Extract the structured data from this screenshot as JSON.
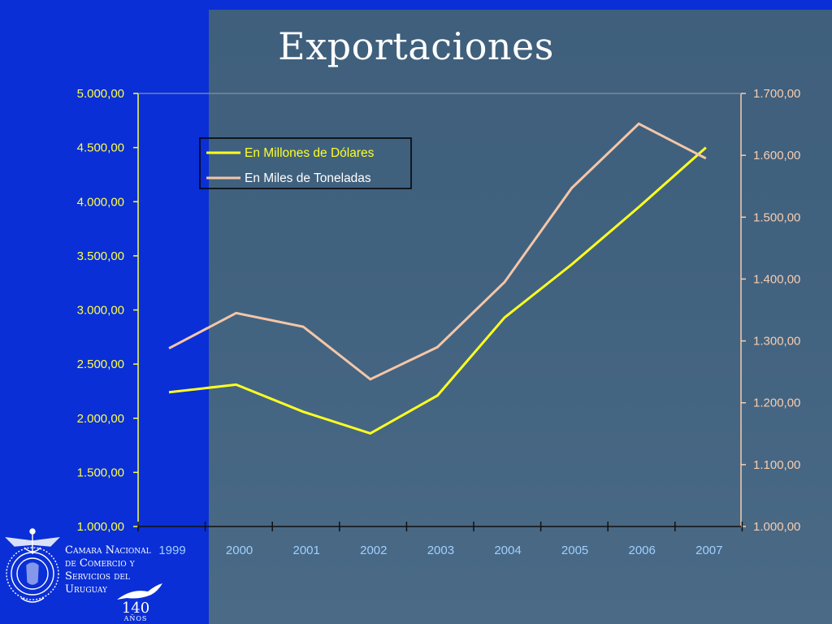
{
  "slide": {
    "title": "Exportaciones",
    "organization": [
      "Camara Nacional",
      "de Comercio y",
      "Servicios del",
      "Uruguay"
    ],
    "anniversary_number": "140",
    "anniversary_label": "AÑOS"
  },
  "colors": {
    "background_left": "#0a2fd6",
    "panel": "#41627f",
    "series_dollars": "#ffff22",
    "series_tons": "#f4c6a8",
    "left_axis_text": "#ffff44",
    "right_axis_text": "#f7cdb0",
    "x_axis_text": "#9fd0ff"
  },
  "chart_data": {
    "type": "line",
    "title": "Exportaciones",
    "categories": [
      "1999",
      "2000",
      "2001",
      "2002",
      "2003",
      "2004",
      "2005",
      "2006",
      "2007"
    ],
    "series": [
      {
        "name": "En Millones de Dólares",
        "axis": "left",
        "values": [
          2240,
          2310,
          2060,
          1860,
          2210,
          2930,
          3420,
          3950,
          4500
        ]
      },
      {
        "name": "En Miles de Toneladas",
        "axis": "right",
        "values": [
          1288,
          1345,
          1323,
          1238,
          1290,
          1395,
          1547,
          1651,
          1595
        ]
      }
    ],
    "y_left": {
      "min": 1000,
      "max": 5000,
      "ticks": [
        "1.000,00",
        "1.500,00",
        "2.000,00",
        "2.500,00",
        "3.000,00",
        "3.500,00",
        "4.000,00",
        "4.500,00",
        "5.000,00"
      ]
    },
    "y_right": {
      "min": 1000,
      "max": 1700,
      "ticks": [
        "1.000,00",
        "1.100,00",
        "1.200,00",
        "1.300,00",
        "1.400,00",
        "1.500,00",
        "1.600,00",
        "1.700,00"
      ]
    },
    "legend": {
      "position": "top-left"
    },
    "grid": false
  }
}
